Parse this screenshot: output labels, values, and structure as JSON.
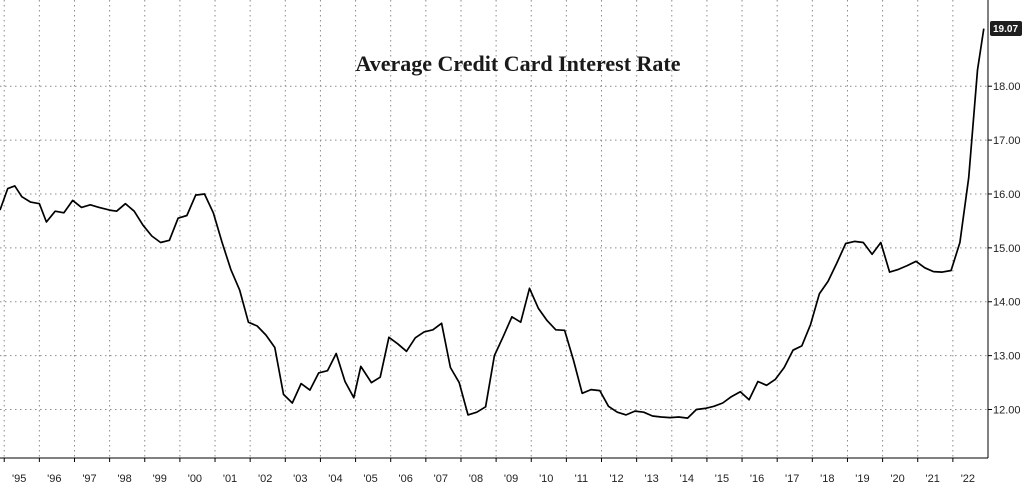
{
  "chart_data": {
    "type": "line",
    "title": "Average Credit Card Interest Rate",
    "xlabel": "",
    "ylabel": "",
    "ylim": [
      11.1,
      19.6
    ],
    "xlim": [
      1994.88,
      2023.0
    ],
    "grid": true,
    "legend": "none",
    "y_ticks": [
      "12.00",
      "13.00",
      "14.00",
      "15.00",
      "16.00",
      "17.00",
      "18.00"
    ],
    "x_ticks": [
      {
        "x": 1995,
        "label": "'95"
      },
      {
        "x": 1996,
        "label": "'96"
      },
      {
        "x": 1997,
        "label": "'97"
      },
      {
        "x": 1998,
        "label": "'98"
      },
      {
        "x": 1999,
        "label": "'99"
      },
      {
        "x": 2000,
        "label": "'00"
      },
      {
        "x": 2001,
        "label": "'01"
      },
      {
        "x": 2002,
        "label": "'02"
      },
      {
        "x": 2003,
        "label": "'03"
      },
      {
        "x": 2004,
        "label": "'04"
      },
      {
        "x": 2005,
        "label": "'05"
      },
      {
        "x": 2006,
        "label": "'06"
      },
      {
        "x": 2007,
        "label": "'07"
      },
      {
        "x": 2008,
        "label": "'08"
      },
      {
        "x": 2009,
        "label": "'09"
      },
      {
        "x": 2010,
        "label": "'10"
      },
      {
        "x": 2011,
        "label": "'11"
      },
      {
        "x": 2012,
        "label": "'12"
      },
      {
        "x": 2013,
        "label": "'13"
      },
      {
        "x": 2014,
        "label": "'14"
      },
      {
        "x": 2015,
        "label": "'15"
      },
      {
        "x": 2016,
        "label": "'16"
      },
      {
        "x": 2017,
        "label": "'17"
      },
      {
        "x": 2018,
        "label": "'18"
      },
      {
        "x": 2019,
        "label": "'19"
      },
      {
        "x": 2020,
        "label": "'20"
      },
      {
        "x": 2021,
        "label": "'21"
      },
      {
        "x": 2022,
        "label": "'22"
      }
    ],
    "last_value_label": "19.07",
    "series": [
      {
        "color": "#000000",
        "points": [
          [
            1994.88,
            15.7
          ],
          [
            1995.1,
            16.1
          ],
          [
            1995.3,
            16.15
          ],
          [
            1995.5,
            15.95
          ],
          [
            1995.75,
            15.85
          ],
          [
            1996.0,
            15.82
          ],
          [
            1996.2,
            15.48
          ],
          [
            1996.45,
            15.68
          ],
          [
            1996.7,
            15.65
          ],
          [
            1996.95,
            15.88
          ],
          [
            1997.2,
            15.75
          ],
          [
            1997.45,
            15.8
          ],
          [
            1997.7,
            15.75
          ],
          [
            1998.0,
            15.7
          ],
          [
            1998.2,
            15.68
          ],
          [
            1998.45,
            15.82
          ],
          [
            1998.7,
            15.68
          ],
          [
            1998.95,
            15.42
          ],
          [
            1999.2,
            15.22
          ],
          [
            1999.45,
            15.1
          ],
          [
            1999.7,
            15.14
          ],
          [
            1999.95,
            15.55
          ],
          [
            2000.2,
            15.6
          ],
          [
            2000.45,
            15.98
          ],
          [
            2000.7,
            16.0
          ],
          [
            2000.95,
            15.65
          ],
          [
            2001.2,
            15.1
          ],
          [
            2001.45,
            14.6
          ],
          [
            2001.7,
            14.22
          ],
          [
            2001.95,
            13.62
          ],
          [
            2002.2,
            13.55
          ],
          [
            2002.45,
            13.38
          ],
          [
            2002.7,
            13.15
          ],
          [
            2002.95,
            12.28
          ],
          [
            2003.2,
            12.12
          ],
          [
            2003.45,
            12.48
          ],
          [
            2003.7,
            12.36
          ],
          [
            2003.95,
            12.68
          ],
          [
            2004.2,
            12.72
          ],
          [
            2004.45,
            13.04
          ],
          [
            2004.7,
            12.52
          ],
          [
            2004.95,
            12.22
          ],
          [
            2005.15,
            12.8
          ],
          [
            2005.45,
            12.5
          ],
          [
            2005.7,
            12.6
          ],
          [
            2005.95,
            13.34
          ],
          [
            2006.2,
            13.22
          ],
          [
            2006.45,
            13.08
          ],
          [
            2006.7,
            13.33
          ],
          [
            2006.95,
            13.44
          ],
          [
            2007.2,
            13.48
          ],
          [
            2007.45,
            13.6
          ],
          [
            2007.7,
            12.78
          ],
          [
            2007.95,
            12.5
          ],
          [
            2008.2,
            11.9
          ],
          [
            2008.45,
            11.95
          ],
          [
            2008.7,
            12.05
          ],
          [
            2008.95,
            13.0
          ],
          [
            2009.2,
            13.35
          ],
          [
            2009.45,
            13.72
          ],
          [
            2009.7,
            13.62
          ],
          [
            2009.95,
            14.25
          ],
          [
            2010.2,
            13.88
          ],
          [
            2010.45,
            13.65
          ],
          [
            2010.7,
            13.48
          ],
          [
            2010.95,
            13.47
          ],
          [
            2011.2,
            12.92
          ],
          [
            2011.45,
            12.3
          ],
          [
            2011.7,
            12.37
          ],
          [
            2011.95,
            12.35
          ],
          [
            2012.2,
            12.06
          ],
          [
            2012.45,
            11.95
          ],
          [
            2012.7,
            11.9
          ],
          [
            2012.95,
            11.97
          ],
          [
            2013.2,
            11.95
          ],
          [
            2013.45,
            11.88
          ],
          [
            2013.7,
            11.86
          ],
          [
            2013.95,
            11.85
          ],
          [
            2014.2,
            11.86
          ],
          [
            2014.45,
            11.84
          ],
          [
            2014.7,
            12.0
          ],
          [
            2014.95,
            12.02
          ],
          [
            2015.2,
            12.06
          ],
          [
            2015.45,
            12.12
          ],
          [
            2015.7,
            12.24
          ],
          [
            2015.95,
            12.33
          ],
          [
            2016.2,
            12.18
          ],
          [
            2016.45,
            12.52
          ],
          [
            2016.7,
            12.45
          ],
          [
            2016.95,
            12.56
          ],
          [
            2017.2,
            12.78
          ],
          [
            2017.45,
            13.1
          ],
          [
            2017.7,
            13.18
          ],
          [
            2017.95,
            13.58
          ],
          [
            2018.2,
            14.15
          ],
          [
            2018.45,
            14.38
          ],
          [
            2018.7,
            14.72
          ],
          [
            2018.95,
            15.08
          ],
          [
            2019.2,
            15.12
          ],
          [
            2019.45,
            15.1
          ],
          [
            2019.7,
            14.88
          ],
          [
            2019.95,
            15.1
          ],
          [
            2020.2,
            14.55
          ],
          [
            2020.45,
            14.6
          ],
          [
            2020.7,
            14.67
          ],
          [
            2020.95,
            14.75
          ],
          [
            2021.2,
            14.63
          ],
          [
            2021.45,
            14.56
          ],
          [
            2021.7,
            14.55
          ],
          [
            2021.95,
            14.58
          ],
          [
            2022.2,
            15.1
          ],
          [
            2022.45,
            16.3
          ],
          [
            2022.7,
            18.3
          ],
          [
            2022.88,
            19.07
          ]
        ]
      }
    ]
  }
}
